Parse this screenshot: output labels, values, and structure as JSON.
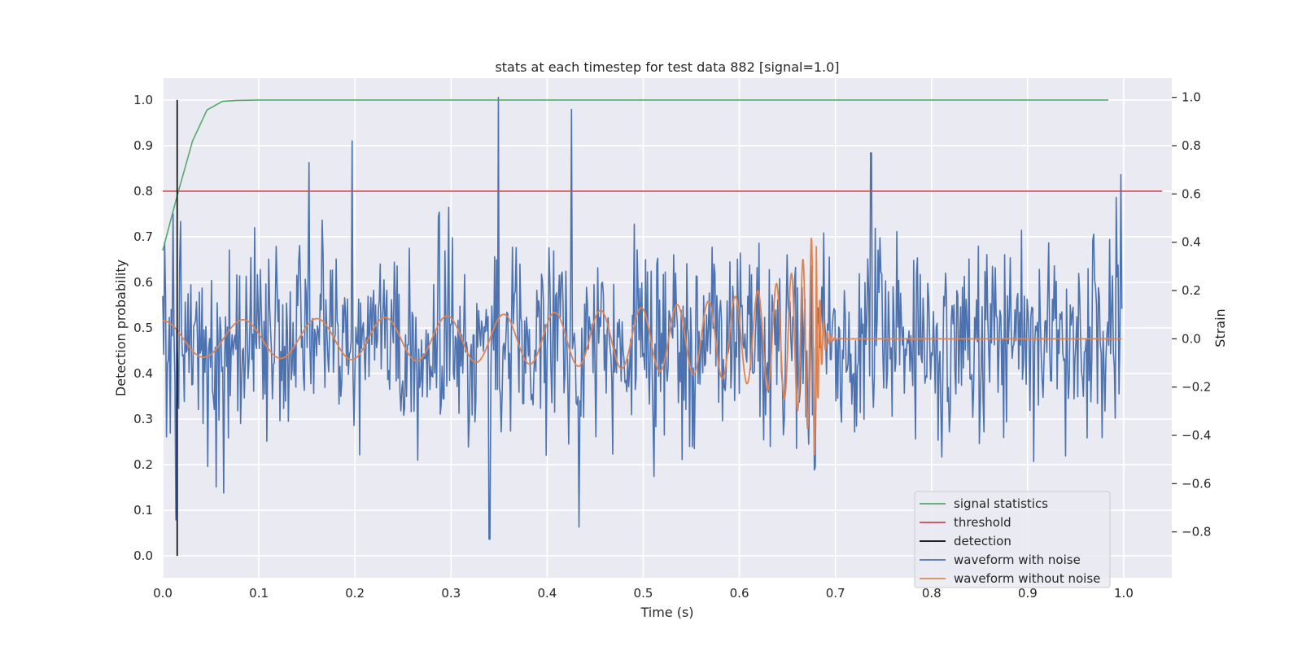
{
  "chart_data": {
    "type": "line",
    "title": "stats at each timestep for test data 882 [signal=1.0]",
    "xlabel": "Time (s)",
    "ylabel": "Detection probability",
    "y2label": "Strain",
    "xlim": [
      0.0,
      1.05
    ],
    "ylim": [
      -0.048,
      1.048
    ],
    "y2lim": [
      -0.99,
      1.08
    ],
    "x_ticks": [
      "0.0",
      "0.1",
      "0.2",
      "0.3",
      "0.4",
      "0.5",
      "0.6",
      "0.7",
      "0.8",
      "0.9",
      "1.0"
    ],
    "y_ticks": [
      "0.0",
      "0.1",
      "0.2",
      "0.3",
      "0.4",
      "0.5",
      "0.6",
      "0.7",
      "0.8",
      "0.9",
      "1.0"
    ],
    "y2_ticks": [
      "−0.8",
      "−0.6",
      "−0.4",
      "−0.2",
      "0.0",
      "0.2",
      "0.4",
      "0.6",
      "0.8",
      "1.0"
    ],
    "grid": true,
    "legend_position": "lower-right",
    "colors": {
      "signal_statistics": "#55a868",
      "threshold": "#c44e52",
      "detection": "#000000",
      "waveform_noise": "#4c72b0",
      "waveform_clean": "#dd8452",
      "background": "#eaeaf2"
    },
    "series": [
      {
        "name": "signal statistics",
        "axis": "left",
        "x": [
          0.0,
          0.015,
          0.031,
          0.046,
          0.062,
          0.077,
          0.1,
          0.2,
          0.3,
          0.4,
          0.5,
          0.6,
          0.7,
          0.8,
          0.9,
          0.984
        ],
        "y": [
          0.67,
          0.79,
          0.91,
          0.978,
          0.997,
          0.999,
          1.0,
          1.0,
          1.0,
          1.0,
          1.0,
          1.0,
          1.0,
          1.0,
          1.0,
          1.0
        ]
      },
      {
        "name": "threshold",
        "axis": "left",
        "x": [
          0.0,
          1.04
        ],
        "y": [
          0.8,
          0.8
        ]
      },
      {
        "name": "detection",
        "axis": "left",
        "x": [
          0.015,
          0.015
        ],
        "y": [
          0.0,
          1.0
        ]
      },
      {
        "name": "waveform with noise",
        "axis": "right",
        "x": [
          0.0,
          0.998
        ],
        "sample_count": 1024,
        "peak_points": [
          [
            0.002,
            0.4
          ],
          [
            0.014,
            -0.75
          ],
          [
            0.152,
            0.73
          ],
          [
            0.197,
            0.82
          ],
          [
            0.34,
            -0.83
          ],
          [
            0.349,
            1.0
          ],
          [
            0.425,
            0.95
          ],
          [
            0.433,
            -0.78
          ],
          [
            0.737,
            0.77
          ],
          [
            0.997,
            0.68
          ]
        ]
      },
      {
        "name": "waveform without noise",
        "axis": "right",
        "x": [
          0.0,
          0.998
        ],
        "sample_count": 1024,
        "merger_time": 0.68,
        "peak_points": [
          [
            0.0,
            0.09
          ],
          [
            0.67,
            0.33
          ],
          [
            0.675,
            0.37
          ],
          [
            0.68,
            -0.53
          ],
          [
            0.7,
            0.0
          ],
          [
            0.998,
            0.0
          ]
        ]
      }
    ]
  }
}
